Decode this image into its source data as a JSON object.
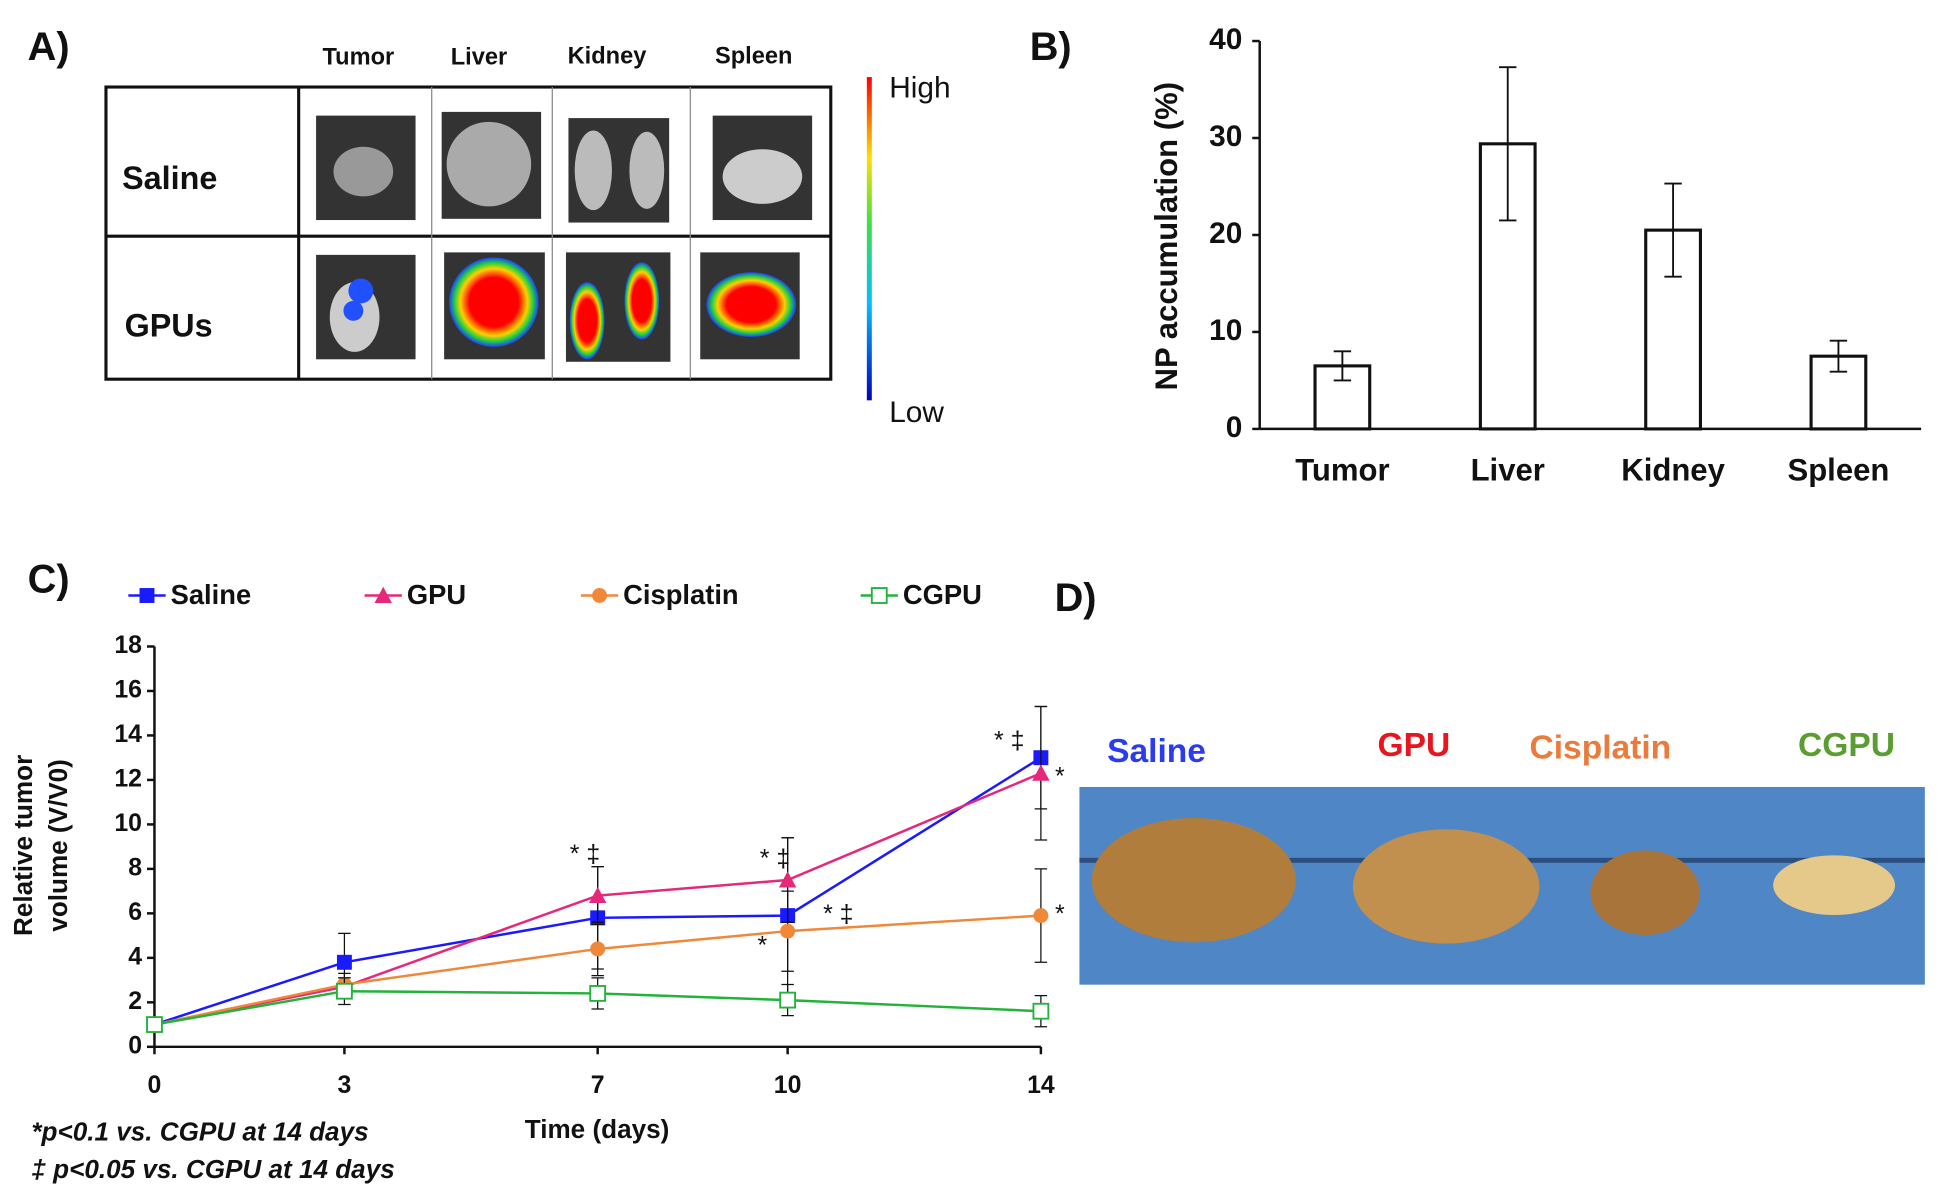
{
  "panel_labels": [
    "A)",
    "B)",
    "C)",
    "D)"
  ],
  "panel_a": {
    "columns": [
      "Tumor",
      "Liver",
      "Kidney",
      "Spleen"
    ],
    "rows": [
      "Saline",
      "GPUs"
    ],
    "scale_high": "High",
    "scale_low": "Low"
  },
  "panel_d": {
    "labels": [
      {
        "text": "Saline",
        "color": "#2a3cf0"
      },
      {
        "text": "GPU",
        "color": "#e8141e"
      },
      {
        "text": "Cisplatin",
        "color": "#ea7b3c"
      },
      {
        "text": "CGPU",
        "color": "#5a9e32"
      }
    ]
  },
  "chart_data": [
    {
      "type": "bar",
      "ylabel": "NP accumulation  (%)",
      "categories": [
        "Tumor",
        "Liver",
        "Kidney",
        "Spleen"
      ],
      "values": [
        6.5,
        29.4,
        20.5,
        7.5
      ],
      "errors": [
        1.5,
        7.9,
        4.8,
        1.6
      ],
      "color": "#ffffff",
      "ylim": [
        0,
        40
      ],
      "yticks": [
        0,
        10,
        20,
        30,
        40
      ]
    },
    {
      "type": "line",
      "xlabel": "Time (days)",
      "ylabel": [
        "Relative tumor",
        "volume (V/V0)"
      ],
      "x": [
        0,
        3,
        7,
        10,
        14
      ],
      "xlim": [
        0,
        14
      ],
      "xticks": [
        0,
        3,
        7,
        10,
        14
      ],
      "ylim": [
        0,
        18
      ],
      "yticks": [
        0,
        2,
        4,
        6,
        8,
        10,
        12,
        14,
        16,
        18
      ],
      "series": [
        {
          "name": "Saline",
          "color": "#1a1aff",
          "marker": "square",
          "values": [
            1,
            3.8,
            5.8,
            5.9,
            13
          ],
          "errors": [
            0.1,
            1.3,
            2.3,
            3.5,
            2.3
          ]
        },
        {
          "name": "GPU",
          "color": "#e6287a",
          "marker": "triangle",
          "values": [
            1,
            2.7,
            6.8,
            7.5,
            12.3
          ],
          "errors": [
            0.1,
            0.4,
            1.3,
            1.9,
            3
          ]
        },
        {
          "name": "Cisplatin",
          "color": "#f0883a",
          "marker": "circle",
          "values": [
            1,
            2.8,
            4.4,
            5.2,
            5.9
          ],
          "errors": [
            0.1,
            0.5,
            1.2,
            1.8,
            2.1
          ]
        },
        {
          "name": "CGPU",
          "color": "#22b33a",
          "marker": "open-square",
          "values": [
            1,
            2.5,
            2.4,
            2.1,
            1.6
          ],
          "errors": [
            0.1,
            0.6,
            0.7,
            0.7,
            0.7
          ]
        }
      ],
      "annotations": [
        {
          "text": "* ‡",
          "x": 6.8,
          "y": 8.6
        },
        {
          "text": "* ‡",
          "x": 9.8,
          "y": 8.4
        },
        {
          "text": "* ‡",
          "x": 10.8,
          "y": 5.9
        },
        {
          "text": "*",
          "x": 9.6,
          "y": 4.5
        },
        {
          "text": "* ‡",
          "x": 13.5,
          "y": 13.7
        },
        {
          "text": "*",
          "x": 14.3,
          "y": 12.1
        },
        {
          "text": "*",
          "x": 14.3,
          "y": 5.9
        }
      ],
      "footnotes": [
        "*p<0.1 vs. CGPU at 14 days",
        "‡ p<0.05 vs. CGPU at 14 days"
      ]
    }
  ]
}
